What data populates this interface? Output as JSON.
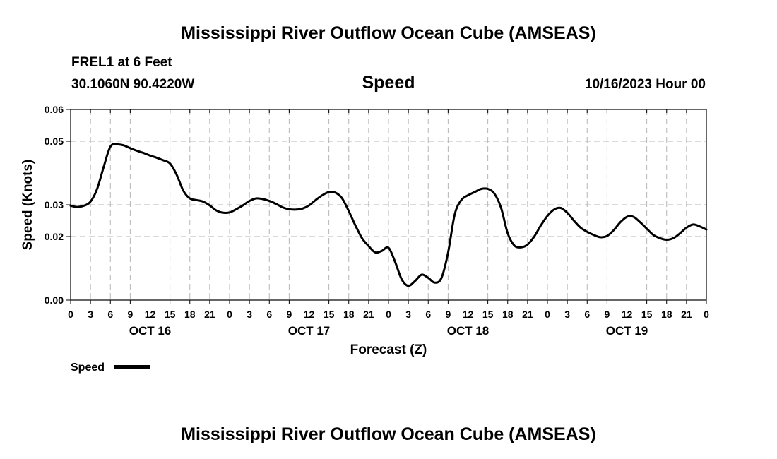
{
  "chart_data": {
    "type": "line",
    "title": "Mississippi River Outflow Ocean Cube (AMSEAS)",
    "repeated_title": "Mississippi River Outflow Ocean Cube (AMSEAS)",
    "subtitle": "Speed",
    "station": "FREL1 at 6 Feet",
    "location": "30.1060N  90.4220W",
    "run_time": "10/16/2023 Hour 00",
    "xlabel": "Forecast (Z)",
    "ylabel": "Speed (Knots)",
    "ylim": [
      0,
      0.06
    ],
    "yticks": [
      0,
      0.02,
      0.03,
      0.05,
      0.06
    ],
    "ytick_labels": [
      "0.00",
      "0.02",
      "0.03",
      "0.05",
      "0.06"
    ],
    "xlim_hours": [
      0,
      96
    ],
    "xticks_hours": [
      0,
      3,
      6,
      9,
      12,
      15,
      18,
      21,
      24,
      27,
      30,
      33,
      36,
      39,
      42,
      45,
      48,
      51,
      54,
      57,
      60,
      63,
      66,
      69,
      72,
      75,
      78,
      81,
      84,
      87,
      90,
      93,
      96
    ],
    "xtick_labels": [
      "0",
      "3",
      "6",
      "9",
      "12",
      "15",
      "18",
      "21",
      "0",
      "3",
      "6",
      "9",
      "12",
      "15",
      "18",
      "21",
      "0",
      "3",
      "6",
      "9",
      "12",
      "15",
      "18",
      "21",
      "0",
      "3",
      "6",
      "9",
      "12",
      "15",
      "18",
      "21",
      "0"
    ],
    "date_labels": [
      {
        "hour": 12,
        "label": "OCT 16"
      },
      {
        "hour": 36,
        "label": "OCT 17"
      },
      {
        "hour": 60,
        "label": "OCT 18"
      },
      {
        "hour": 84,
        "label": "OCT 19"
      }
    ],
    "grid": true,
    "legend": "bottom-left",
    "series": [
      {
        "name": "Speed",
        "color": "#000000",
        "x": [
          0,
          1,
          2,
          3,
          4,
          5,
          6,
          7,
          8,
          9,
          10,
          11,
          12,
          13,
          14,
          15,
          16,
          17,
          18,
          19,
          20,
          21,
          22,
          23,
          24,
          25,
          26,
          27,
          28,
          29,
          30,
          31,
          32,
          33,
          34,
          35,
          36,
          37,
          38,
          39,
          40,
          41,
          42,
          43,
          44,
          45,
          46,
          47,
          48,
          49,
          50,
          51,
          52,
          53,
          54,
          55,
          56,
          57,
          58,
          59,
          60,
          61,
          62,
          63,
          64,
          65,
          66,
          67,
          68,
          69,
          70,
          71,
          72,
          73,
          74,
          75,
          76,
          77,
          78,
          79,
          80,
          81,
          82,
          83,
          84,
          85,
          86,
          87,
          88,
          89,
          90,
          91,
          92,
          93,
          94,
          95,
          96
        ],
        "values": [
          0.0297,
          0.0293,
          0.0297,
          0.031,
          0.035,
          0.042,
          0.0483,
          0.049,
          0.0487,
          0.0478,
          0.047,
          0.0463,
          0.0455,
          0.0448,
          0.044,
          0.043,
          0.0395,
          0.0345,
          0.032,
          0.0315,
          0.031,
          0.0298,
          0.0282,
          0.0275,
          0.0276,
          0.0286,
          0.0298,
          0.0312,
          0.032,
          0.0318,
          0.0312,
          0.0303,
          0.0292,
          0.0286,
          0.0285,
          0.0288,
          0.0298,
          0.0315,
          0.033,
          0.034,
          0.0338,
          0.032,
          0.028,
          0.0235,
          0.0195,
          0.017,
          0.015,
          0.0155,
          0.0165,
          0.012,
          0.0065,
          0.0045,
          0.006,
          0.008,
          0.007,
          0.0055,
          0.007,
          0.015,
          0.027,
          0.0315,
          0.033,
          0.034,
          0.035,
          0.035,
          0.0335,
          0.029,
          0.021,
          0.0172,
          0.0166,
          0.0175,
          0.02,
          0.0235,
          0.0265,
          0.0285,
          0.029,
          0.0275,
          0.025,
          0.0228,
          0.0215,
          0.0205,
          0.0198,
          0.0202,
          0.022,
          0.0245,
          0.0262,
          0.0262,
          0.0245,
          0.0225,
          0.0205,
          0.0195,
          0.019,
          0.0195,
          0.021,
          0.0228,
          0.0238,
          0.0232,
          0.0222
        ]
      }
    ]
  },
  "legend_label": "Speed"
}
